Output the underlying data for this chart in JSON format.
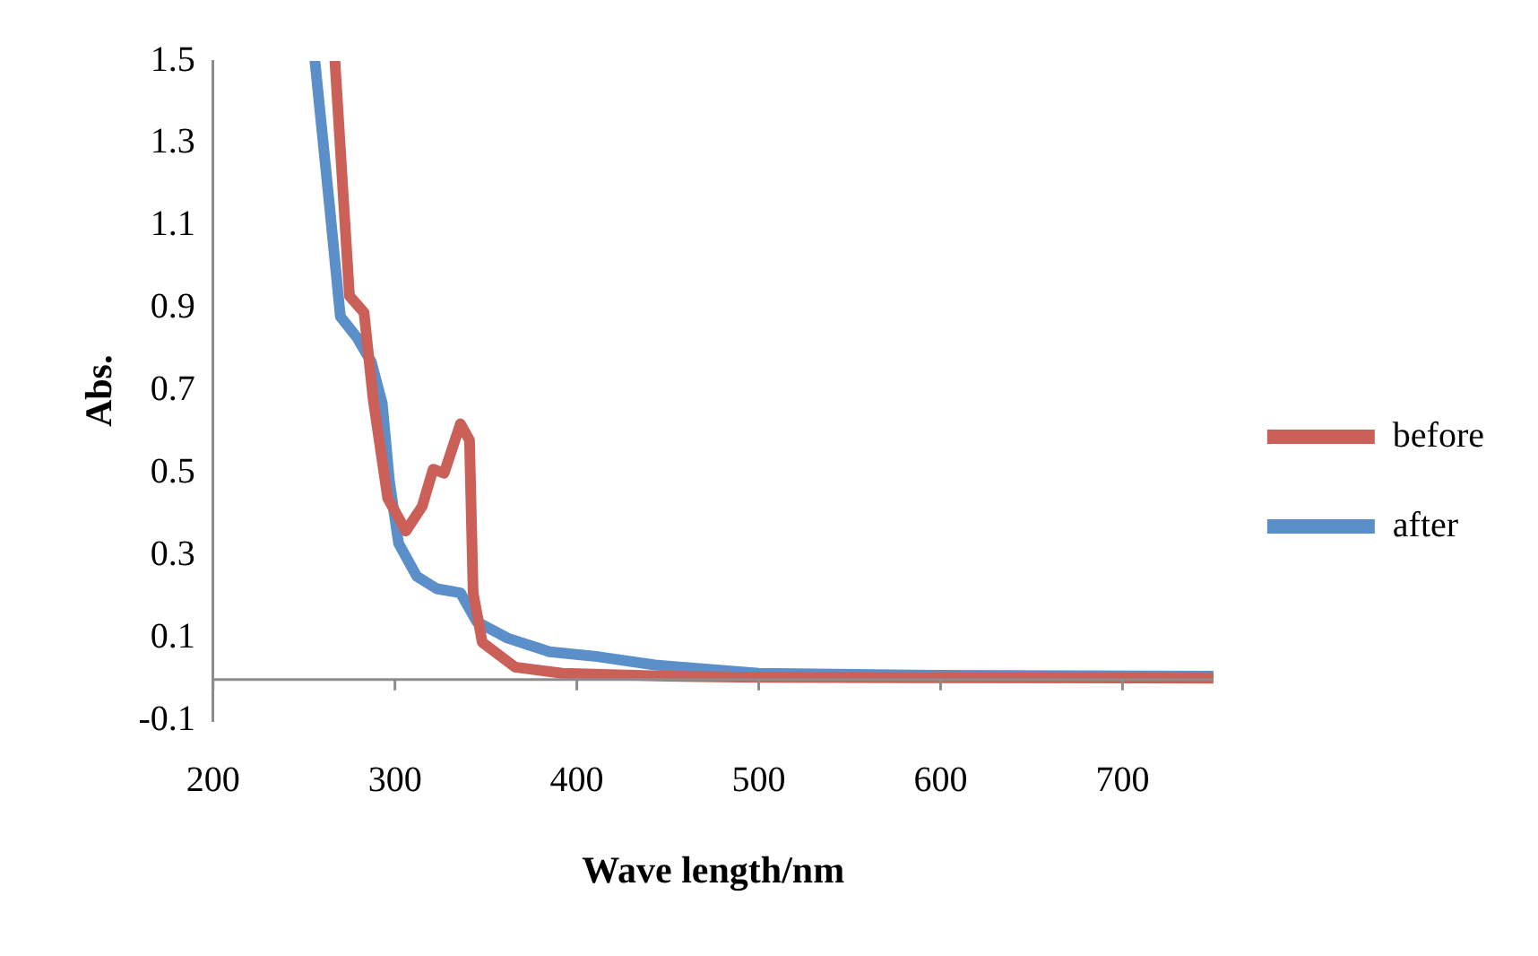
{
  "chart_data": {
    "type": "line",
    "xlabel": "Wave length/nm",
    "ylabel": "Abs.",
    "xlim": [
      200,
      750
    ],
    "xticks": [
      200,
      300,
      400,
      500,
      600,
      700
    ],
    "ylim": [
      -0.1,
      1.5
    ],
    "yticks": [
      -0.1,
      0.1,
      0.3,
      0.5,
      0.7,
      0.9,
      1.1,
      1.3,
      1.5
    ],
    "grid": false,
    "legend": "right",
    "marker": "none",
    "line_style": "solid",
    "series": [
      {
        "name": "before",
        "color": "#cb6058",
        "x": [
          267,
          275,
          283,
          288,
          296,
          306,
          315,
          321,
          327,
          336,
          341,
          343,
          348,
          366,
          392,
          450,
          500,
          600,
          750
        ],
        "values": [
          1.5,
          0.93,
          0.89,
          0.68,
          0.44,
          0.36,
          0.42,
          0.51,
          0.5,
          0.62,
          0.58,
          0.21,
          0.09,
          0.03,
          0.015,
          0.008,
          0.005,
          0.004,
          0.003
        ]
      },
      {
        "name": "after",
        "color": "#5b8fc9",
        "x": [
          256,
          264,
          270,
          279,
          287,
          293,
          297,
          302,
          312,
          323,
          336,
          345,
          362,
          385,
          412,
          443,
          500,
          600,
          750
        ],
        "values": [
          1.5,
          1.15,
          0.88,
          0.83,
          0.77,
          0.67,
          0.48,
          0.33,
          0.25,
          0.22,
          0.21,
          0.14,
          0.1,
          0.067,
          0.055,
          0.035,
          0.015,
          0.01,
          0.008
        ]
      }
    ]
  }
}
